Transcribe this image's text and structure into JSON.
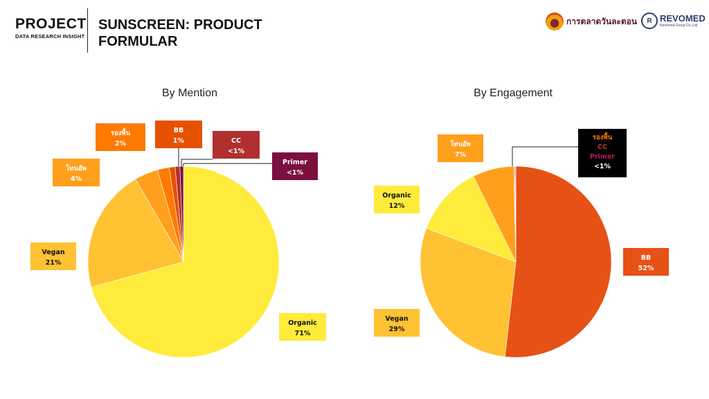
{
  "header": {
    "project_title": "PROJECT",
    "project_subtitle": "DATA RESEARCH INSIGHT",
    "title_line1": "SUNSCREEN: PRODUCT",
    "title_line2": "FORMULAR"
  },
  "logos": {
    "logo1_text": "การตลาดวันละตอน",
    "logo2_name": "REVOMED",
    "logo2_sub": "Revomed Group Co.,Ltd."
  },
  "chart_data": [
    {
      "type": "pie",
      "title": "By Mention",
      "slices": [
        {
          "label": "Organic",
          "value": 71,
          "display": "71%",
          "color": "#FFEB3B",
          "text_color": "#111111"
        },
        {
          "label": "Vegan",
          "value": 21,
          "display": "21%",
          "color": "#FFC233",
          "text_color": "#111111"
        },
        {
          "label": "โทนอัพ",
          "value": 4,
          "display": "4%",
          "color": "#FF9F1C",
          "text_color": "#ffffff"
        },
        {
          "label": "รองพื้น",
          "value": 2,
          "display": "2%",
          "color": "#FF7A00",
          "text_color": "#ffffff"
        },
        {
          "label": "BB",
          "value": 1,
          "display": "1%",
          "color": "#E65100",
          "text_color": "#ffffff"
        },
        {
          "label": "CC",
          "value": 0.8,
          "display": "<1%",
          "color": "#B03030",
          "text_color": "#ffffff"
        },
        {
          "label": "Primer",
          "value": 0.6,
          "display": "<1%",
          "color": "#7B1040",
          "text_color": "#ffffff"
        }
      ]
    },
    {
      "type": "pie",
      "title": "By Engagement",
      "slices": [
        {
          "label": "BB",
          "value": 52,
          "display": "52%",
          "color": "#E65116",
          "text_color": "#ffffff"
        },
        {
          "label": "Vegan",
          "value": 29,
          "display": "29%",
          "color": "#FFC233",
          "text_color": "#111111"
        },
        {
          "label": "Organic",
          "value": 12,
          "display": "12%",
          "color": "#FFEB3B",
          "text_color": "#111111"
        },
        {
          "label": "โทนอัพ",
          "value": 7,
          "display": "7%",
          "color": "#FF9F1C",
          "text_color": "#ffffff"
        },
        {
          "label": "รองพื้น",
          "value": 0.15,
          "display": "",
          "color": "#FF7A00",
          "text_color": "#FF7A00"
        },
        {
          "label": "CC",
          "value": 0.1,
          "display": "",
          "color": "#B03030",
          "text_color": "#C0392B"
        },
        {
          "label": "Primer",
          "value": 0.1,
          "display": "<1%",
          "color": "#7B1040",
          "text_color": "#C2185B"
        }
      ]
    }
  ]
}
